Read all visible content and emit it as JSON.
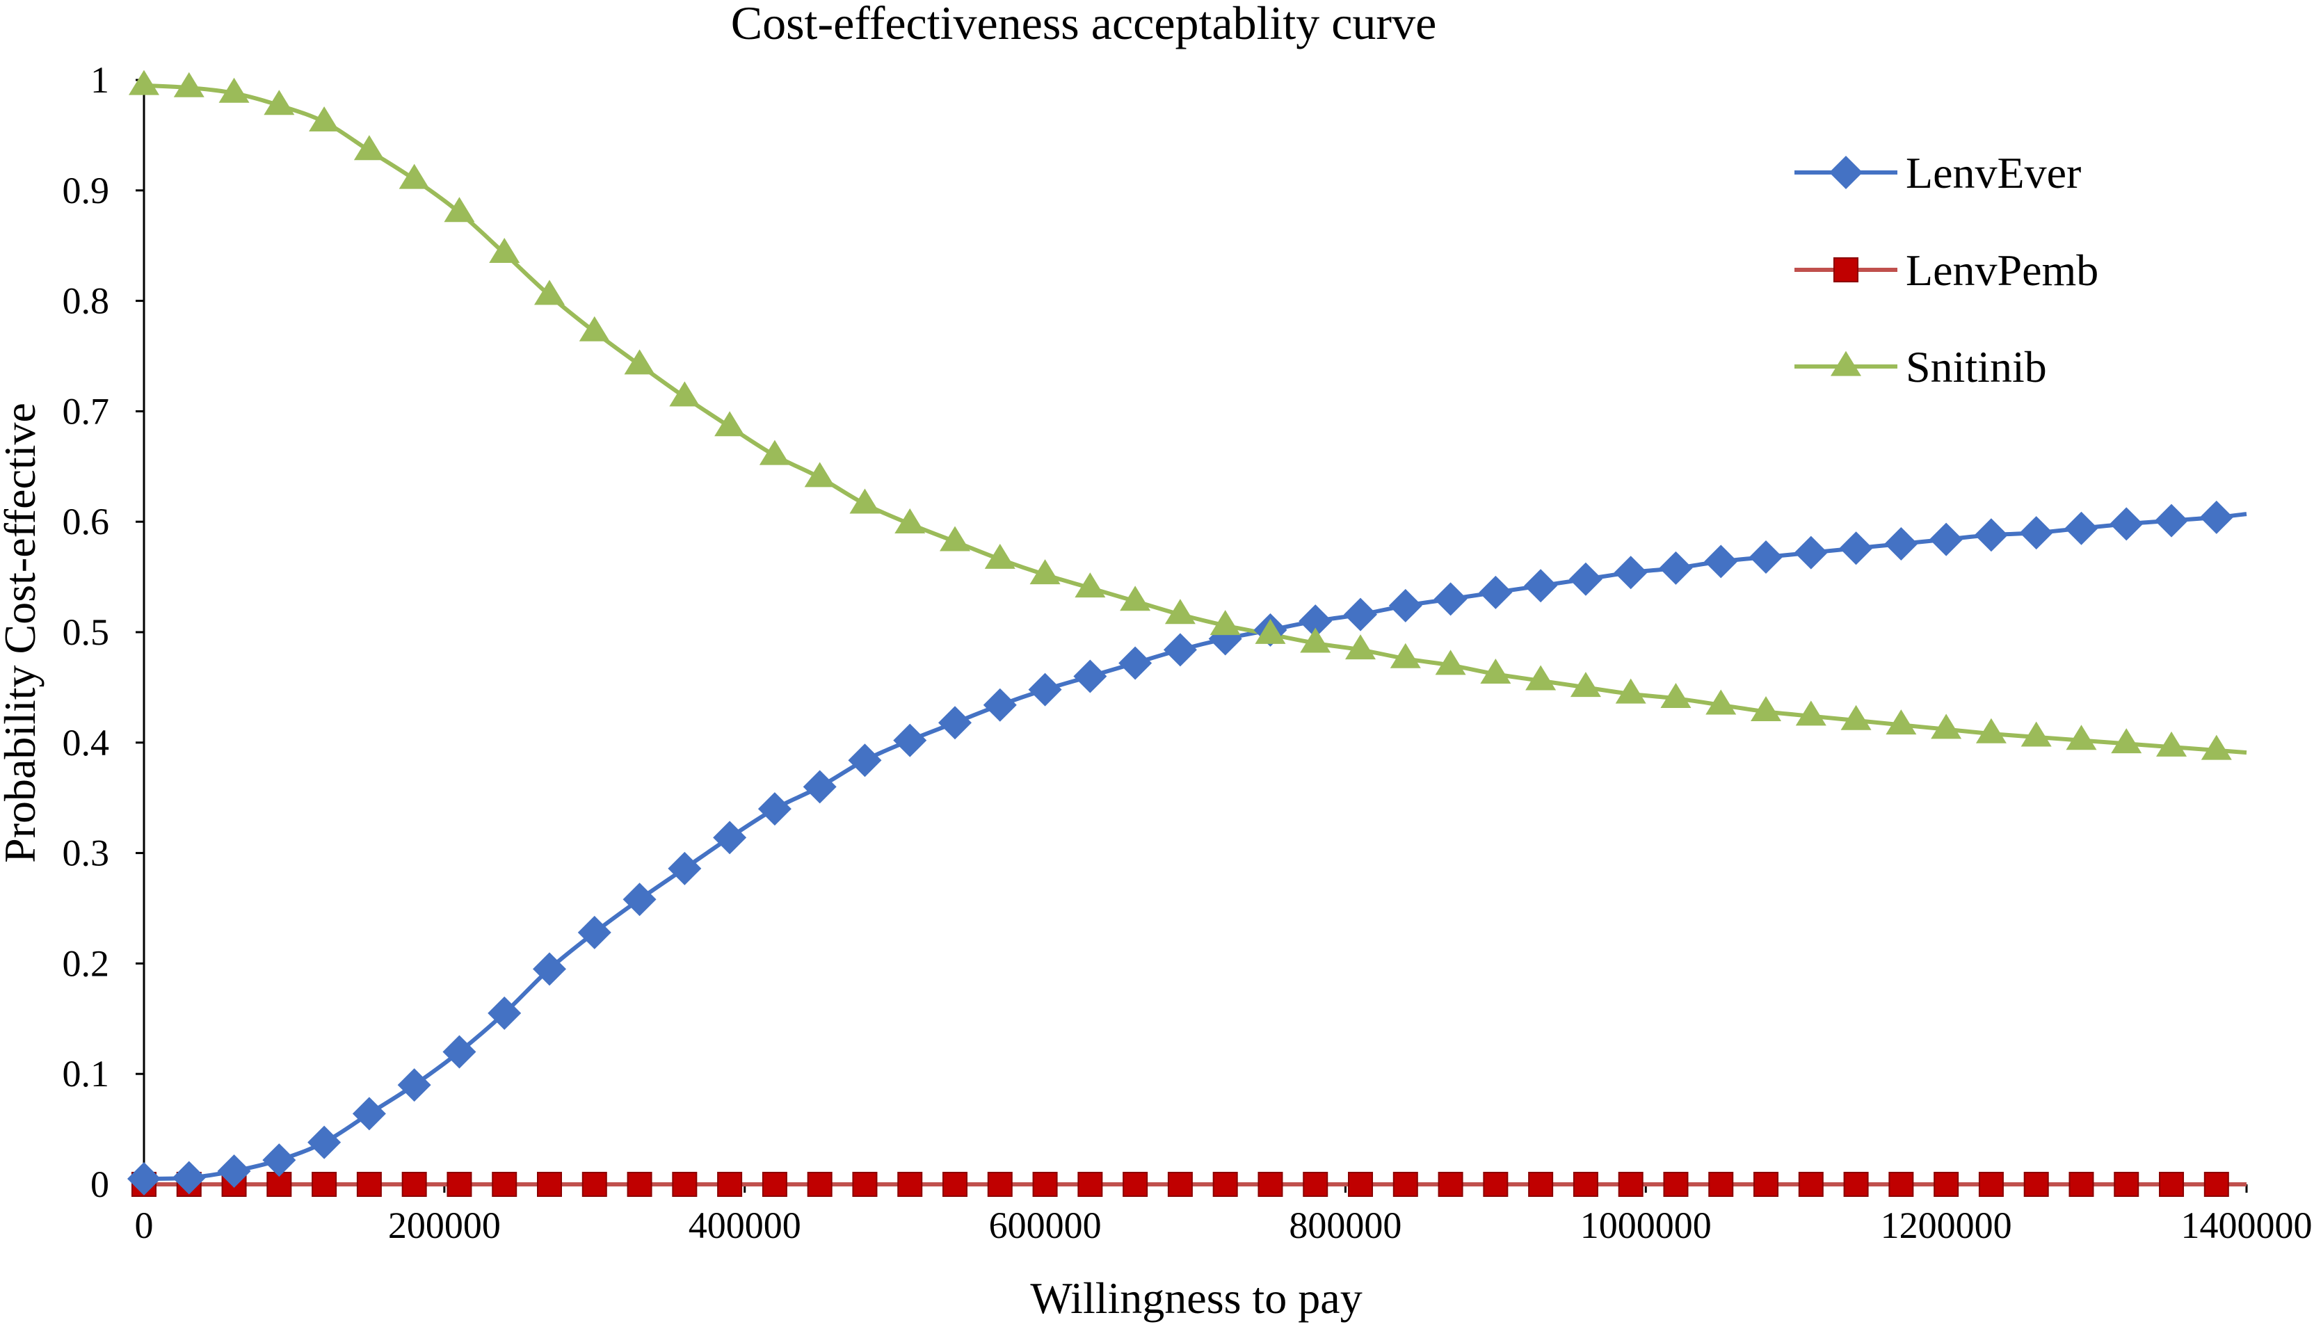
{
  "chart_data": {
    "type": "line",
    "title": "Cost-effectiveness acceptablity curve",
    "xlabel": "Willingness to pay",
    "ylabel": "Probability Cost-effective",
    "xlim": [
      0,
      1400000
    ],
    "ylim": [
      0,
      1
    ],
    "x_ticks": [
      0,
      200000,
      400000,
      600000,
      800000,
      1000000,
      1200000,
      1400000
    ],
    "x_tick_labels": [
      "0",
      "200000",
      "400000",
      "600000",
      "800000",
      "1000000",
      "1200000",
      "1400000"
    ],
    "y_ticks": [
      0,
      0.1,
      0.2,
      0.3,
      0.4,
      0.5,
      0.6,
      0.7,
      0.8,
      0.9,
      1
    ],
    "y_tick_labels": [
      "0",
      "0.1",
      "0.2",
      "0.3",
      "0.4",
      "0.5",
      "0.6",
      "0.7",
      "0.8",
      "0.9",
      "1"
    ],
    "grid": false,
    "legend_position": "top-right",
    "x": [
      0,
      30000,
      60000,
      90000,
      120000,
      150000,
      180000,
      210000,
      240000,
      270000,
      300000,
      330000,
      360000,
      390000,
      420000,
      450000,
      480000,
      510000,
      540000,
      570000,
      600000,
      630000,
      660000,
      690000,
      720000,
      750000,
      780000,
      810000,
      840000,
      870000,
      900000,
      930000,
      960000,
      990000,
      1020000,
      1050000,
      1080000,
      1110000,
      1140000,
      1170000,
      1200000,
      1230000,
      1260000,
      1290000,
      1320000,
      1350000,
      1380000
    ],
    "x_line_end": 1400000,
    "series": [
      {
        "name": "LenvEver",
        "color": "#4472C4",
        "marker": "diamond",
        "values": [
          0.005,
          0.006,
          0.012,
          0.022,
          0.038,
          0.064,
          0.09,
          0.12,
          0.155,
          0.195,
          0.228,
          0.258,
          0.286,
          0.314,
          0.34,
          0.36,
          0.384,
          0.402,
          0.418,
          0.434,
          0.448,
          0.46,
          0.472,
          0.484,
          0.494,
          0.502,
          0.51,
          0.516,
          0.524,
          0.53,
          0.536,
          0.542,
          0.548,
          0.554,
          0.558,
          0.564,
          0.568,
          0.572,
          0.576,
          0.58,
          0.584,
          0.588,
          0.59,
          0.594,
          0.598,
          0.601,
          0.604
        ],
        "end_value": 0.607
      },
      {
        "name": "LenvPemb",
        "color": "#C00000",
        "line_color": "#C0504D",
        "marker": "square",
        "values": [
          0,
          0,
          0,
          0,
          0,
          0,
          0,
          0,
          0,
          0,
          0,
          0,
          0,
          0,
          0,
          0,
          0,
          0,
          0,
          0,
          0,
          0,
          0,
          0,
          0,
          0,
          0,
          0,
          0,
          0,
          0,
          0,
          0,
          0,
          0,
          0,
          0,
          0,
          0,
          0,
          0,
          0,
          0,
          0,
          0,
          0,
          0
        ],
        "end_value": 0
      },
      {
        "name": "Snitinib",
        "color": "#9BBB59",
        "marker": "triangle",
        "values": [
          0.995,
          0.993,
          0.988,
          0.977,
          0.962,
          0.936,
          0.91,
          0.88,
          0.843,
          0.805,
          0.772,
          0.742,
          0.713,
          0.686,
          0.66,
          0.64,
          0.616,
          0.598,
          0.582,
          0.566,
          0.552,
          0.54,
          0.528,
          0.516,
          0.506,
          0.498,
          0.49,
          0.484,
          0.476,
          0.47,
          0.462,
          0.456,
          0.45,
          0.444,
          0.44,
          0.434,
          0.428,
          0.424,
          0.42,
          0.416,
          0.412,
          0.408,
          0.405,
          0.402,
          0.399,
          0.396,
          0.393
        ],
        "end_value": 0.391
      }
    ]
  }
}
